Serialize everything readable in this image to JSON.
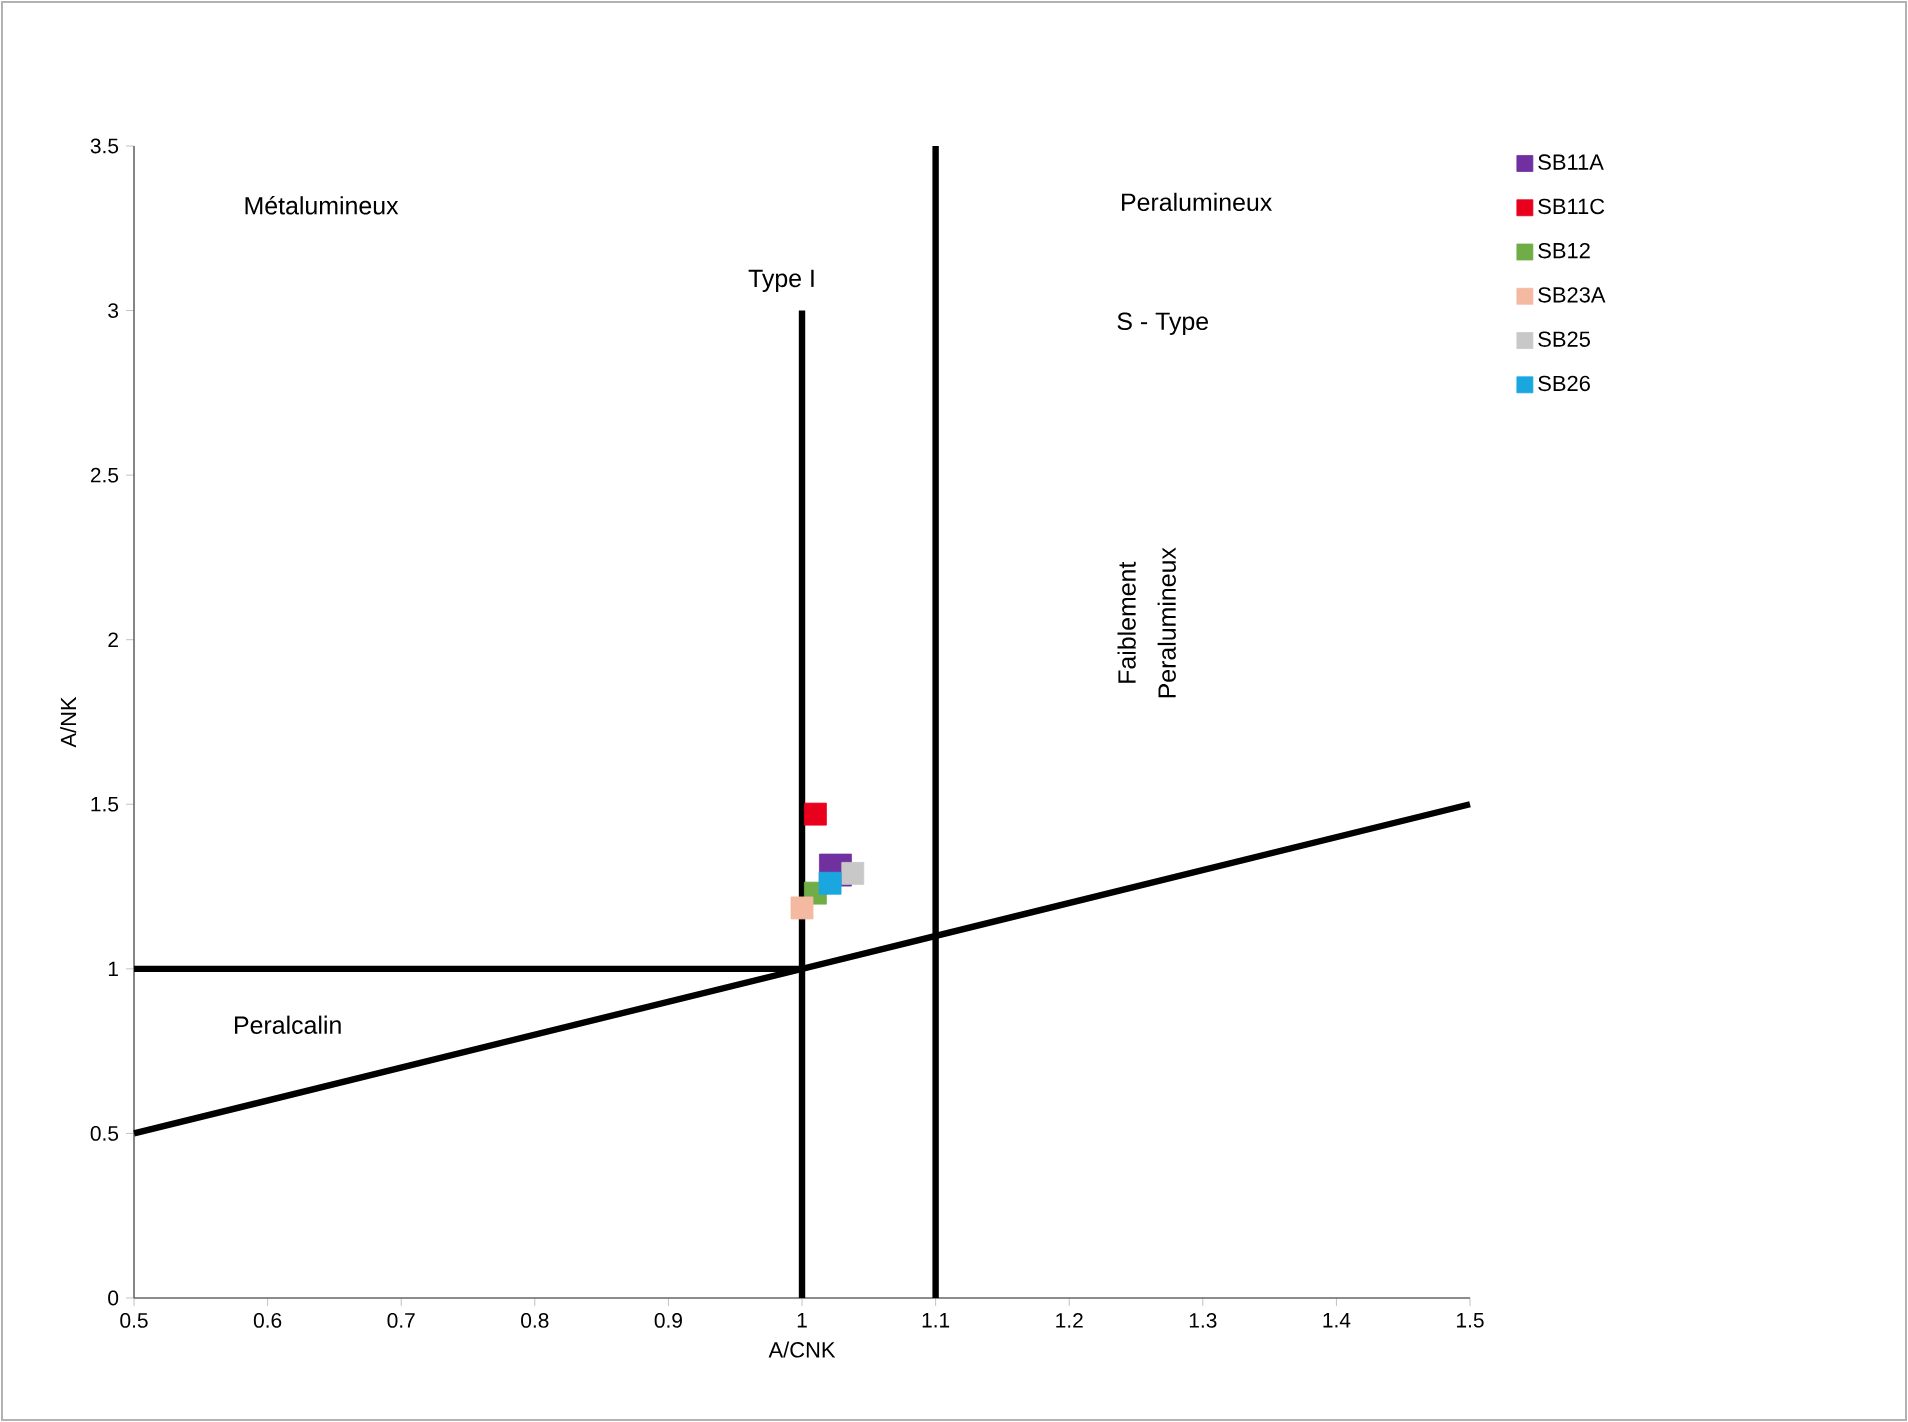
{
  "chart_data": {
    "type": "scatter",
    "xlabel": "A/CNK",
    "ylabel": "A/NK",
    "xlim": [
      0.5,
      1.5
    ],
    "ylim": [
      0,
      3.5
    ],
    "xticks": [
      0.5,
      0.6,
      0.7,
      0.8,
      0.9,
      1,
      1.1,
      1.2,
      1.3,
      1.4,
      1.5
    ],
    "yticks": [
      0,
      0.5,
      1,
      1.5,
      2,
      2.5,
      3,
      3.5
    ],
    "legend": "top right",
    "grid": false,
    "series": [
      {
        "name": "SB11A",
        "color": "#7030a0",
        "marker": "square",
        "x": [
          1.025
        ],
        "values": [
          1.3
        ]
      },
      {
        "name": "SB11C",
        "color": "#e8001c",
        "marker": "square",
        "x": [
          1.01
        ],
        "values": [
          1.47
        ]
      },
      {
        "name": "SB12",
        "color": "#70ad47",
        "marker": "square",
        "x": [
          1.01
        ],
        "values": [
          1.23
        ]
      },
      {
        "name": "SB23A",
        "color": "#f4b9a0",
        "marker": "square",
        "x": [
          1.0
        ],
        "values": [
          1.185
        ]
      },
      {
        "name": "SB25",
        "color": "#c8c8c8",
        "marker": "square",
        "x": [
          1.038
        ],
        "values": [
          1.29
        ]
      },
      {
        "name": "SB26",
        "color": "#1aa7e0",
        "marker": "square",
        "x": [
          1.021
        ],
        "values": [
          1.26
        ]
      },
      {
        "type": "line",
        "color": "#000000",
        "marker": "none",
        "x": [
          1,
          1
        ],
        "values": [
          0,
          3
        ]
      },
      {
        "type": "line",
        "color": "#000000",
        "marker": "none",
        "x": [
          1.1,
          1.1
        ],
        "values": [
          0,
          3.5
        ]
      },
      {
        "type": "line",
        "color": "#000000",
        "marker": "none",
        "x": [
          0.5,
          1
        ],
        "values": [
          1,
          1
        ]
      },
      {
        "type": "line",
        "color": "#000000",
        "marker": "none",
        "x": [
          0.5,
          1.5
        ],
        "values": [
          0.5,
          1.5
        ]
      }
    ],
    "annotations": [
      "Métalumineux",
      "Peralumineux",
      "Type I",
      "S - Type",
      "Faiblement",
      "Peralumineux",
      "Peralcalin"
    ]
  }
}
